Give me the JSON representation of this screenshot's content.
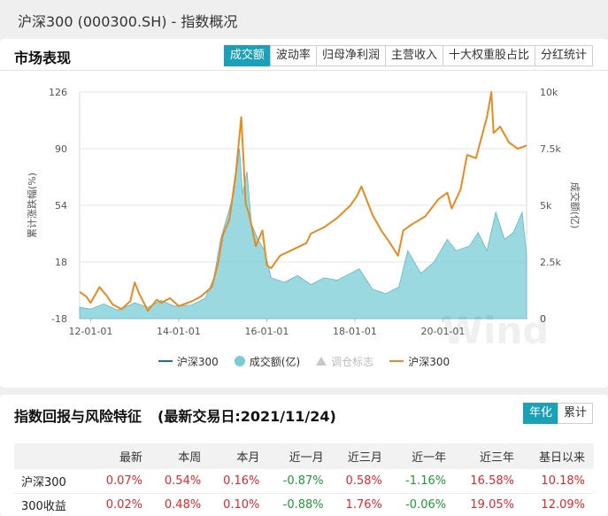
{
  "page": {
    "title": "沪深300 (000300.SH) - 指数概况"
  },
  "market": {
    "title": "市场表现",
    "tabs": [
      "成交额",
      "波动率",
      "归母净利润",
      "主营收入",
      "十大权重股占比",
      "分红统计"
    ],
    "active_tab": "成交额",
    "legend": [
      {
        "label": "沪深300",
        "kind": "line",
        "color": "#1f6f9a"
      },
      {
        "label": "成交额(亿)",
        "kind": "dot",
        "color": "#78ccd6"
      },
      {
        "label": "调仓标志",
        "kind": "triangle",
        "color": "#c8c8c8"
      },
      {
        "label": "沪深300",
        "kind": "line",
        "color": "#e88a22"
      }
    ]
  },
  "chart_data": {
    "type": "line",
    "ylabel": "累计涨跌幅(%)",
    "y2label": "成交额(亿)",
    "x_ticks": [
      "12-01-01",
      "14-01-01",
      "16-01-01",
      "18-01-01",
      "20-01-01"
    ],
    "x_range": [
      2011.75,
      2021.9
    ],
    "ylim": [
      -18,
      126
    ],
    "y_ticks": [
      126,
      90,
      54,
      18,
      -18
    ],
    "y2lim": [
      0,
      10000
    ],
    "y2_ticks": [
      "10k",
      "7.5k",
      "5k",
      "2.5k",
      "0"
    ],
    "grid": true,
    "series": [
      {
        "name": "沪深300",
        "color": "#e88a22",
        "axis": "left",
        "x": [
          2011.75,
          2011.9,
          2012.0,
          2012.2,
          2012.35,
          2012.5,
          2012.7,
          2012.9,
          2013.0,
          2013.1,
          2013.3,
          2013.5,
          2013.6,
          2013.8,
          2014.0,
          2014.3,
          2014.5,
          2014.75,
          2014.9,
          2015.0,
          2015.15,
          2015.3,
          2015.42,
          2015.48,
          2015.52,
          2015.6,
          2015.75,
          2015.9,
          2016.0,
          2016.1,
          2016.3,
          2016.6,
          2016.9,
          2017.0,
          2017.3,
          2017.6,
          2017.9,
          2018.05,
          2018.15,
          2018.4,
          2018.6,
          2018.8,
          2018.98,
          2019.1,
          2019.3,
          2019.6,
          2019.9,
          2020.1,
          2020.2,
          2020.4,
          2020.55,
          2020.75,
          2021.0,
          2021.1,
          2021.15,
          2021.3,
          2021.5,
          2021.7,
          2021.9
        ],
        "values": [
          -1,
          -4,
          -8,
          2,
          -3,
          -9,
          -12,
          -7,
          5,
          -2,
          -13,
          -6,
          -8,
          -5,
          -10,
          -7,
          -4,
          2,
          18,
          35,
          45,
          75,
          110,
          78,
          55,
          48,
          28,
          38,
          16,
          14,
          22,
          26,
          30,
          36,
          40,
          46,
          54,
          60,
          66,
          48,
          38,
          30,
          22,
          38,
          42,
          47,
          58,
          62,
          52,
          64,
          86,
          84,
          110,
          126,
          100,
          104,
          94,
          90,
          92
        ]
      },
      {
        "name": "成交额(亿)",
        "color": "#78ccd6",
        "axis": "right",
        "x": [
          2011.75,
          2012.0,
          2012.3,
          2012.6,
          2012.9,
          2013.0,
          2013.3,
          2013.6,
          2013.9,
          2014.3,
          2014.6,
          2014.8,
          2014.95,
          2015.1,
          2015.25,
          2015.38,
          2015.45,
          2015.55,
          2015.65,
          2015.8,
          2015.95,
          2016.1,
          2016.4,
          2016.7,
          2017.0,
          2017.3,
          2017.6,
          2017.9,
          2018.1,
          2018.4,
          2018.7,
          2019.0,
          2019.2,
          2019.5,
          2019.8,
          2020.1,
          2020.3,
          2020.6,
          2020.8,
          2021.0,
          2021.2,
          2021.4,
          2021.6,
          2021.8,
          2021.9
        ],
        "values": [
          500,
          420,
          650,
          380,
          600,
          700,
          500,
          800,
          550,
          600,
          900,
          1800,
          3500,
          4500,
          5500,
          7500,
          5500,
          6500,
          4200,
          3500,
          3000,
          1800,
          1600,
          1900,
          1500,
          1800,
          1700,
          2000,
          2200,
          1300,
          1100,
          1400,
          3000,
          2000,
          2500,
          3500,
          3000,
          3200,
          3800,
          3000,
          4700,
          3500,
          3800,
          4700,
          2800
        ]
      }
    ],
    "annotations": [
      "Wind"
    ]
  },
  "returns": {
    "title": "指数回报与风险特征",
    "subtitle": "(最新交易日:2021/11/24)",
    "tabs": [
      "年化",
      "累计"
    ],
    "active_tab": "年化",
    "columns": [
      "",
      "最新",
      "本周",
      "本月",
      "近一月",
      "近三月",
      "近一年",
      "近三年",
      "基日以来"
    ],
    "rows": [
      {
        "name": "沪深300",
        "values": [
          "0.07%",
          "0.54%",
          "0.16%",
          "-0.87%",
          "0.58%",
          "-1.16%",
          "16.58%",
          "10.18%"
        ]
      },
      {
        "name": "300收益",
        "values": [
          "0.02%",
          "0.48%",
          "0.10%",
          "-0.88%",
          "1.76%",
          "-0.06%",
          "19.05%",
          "12.09%"
        ]
      }
    ]
  }
}
